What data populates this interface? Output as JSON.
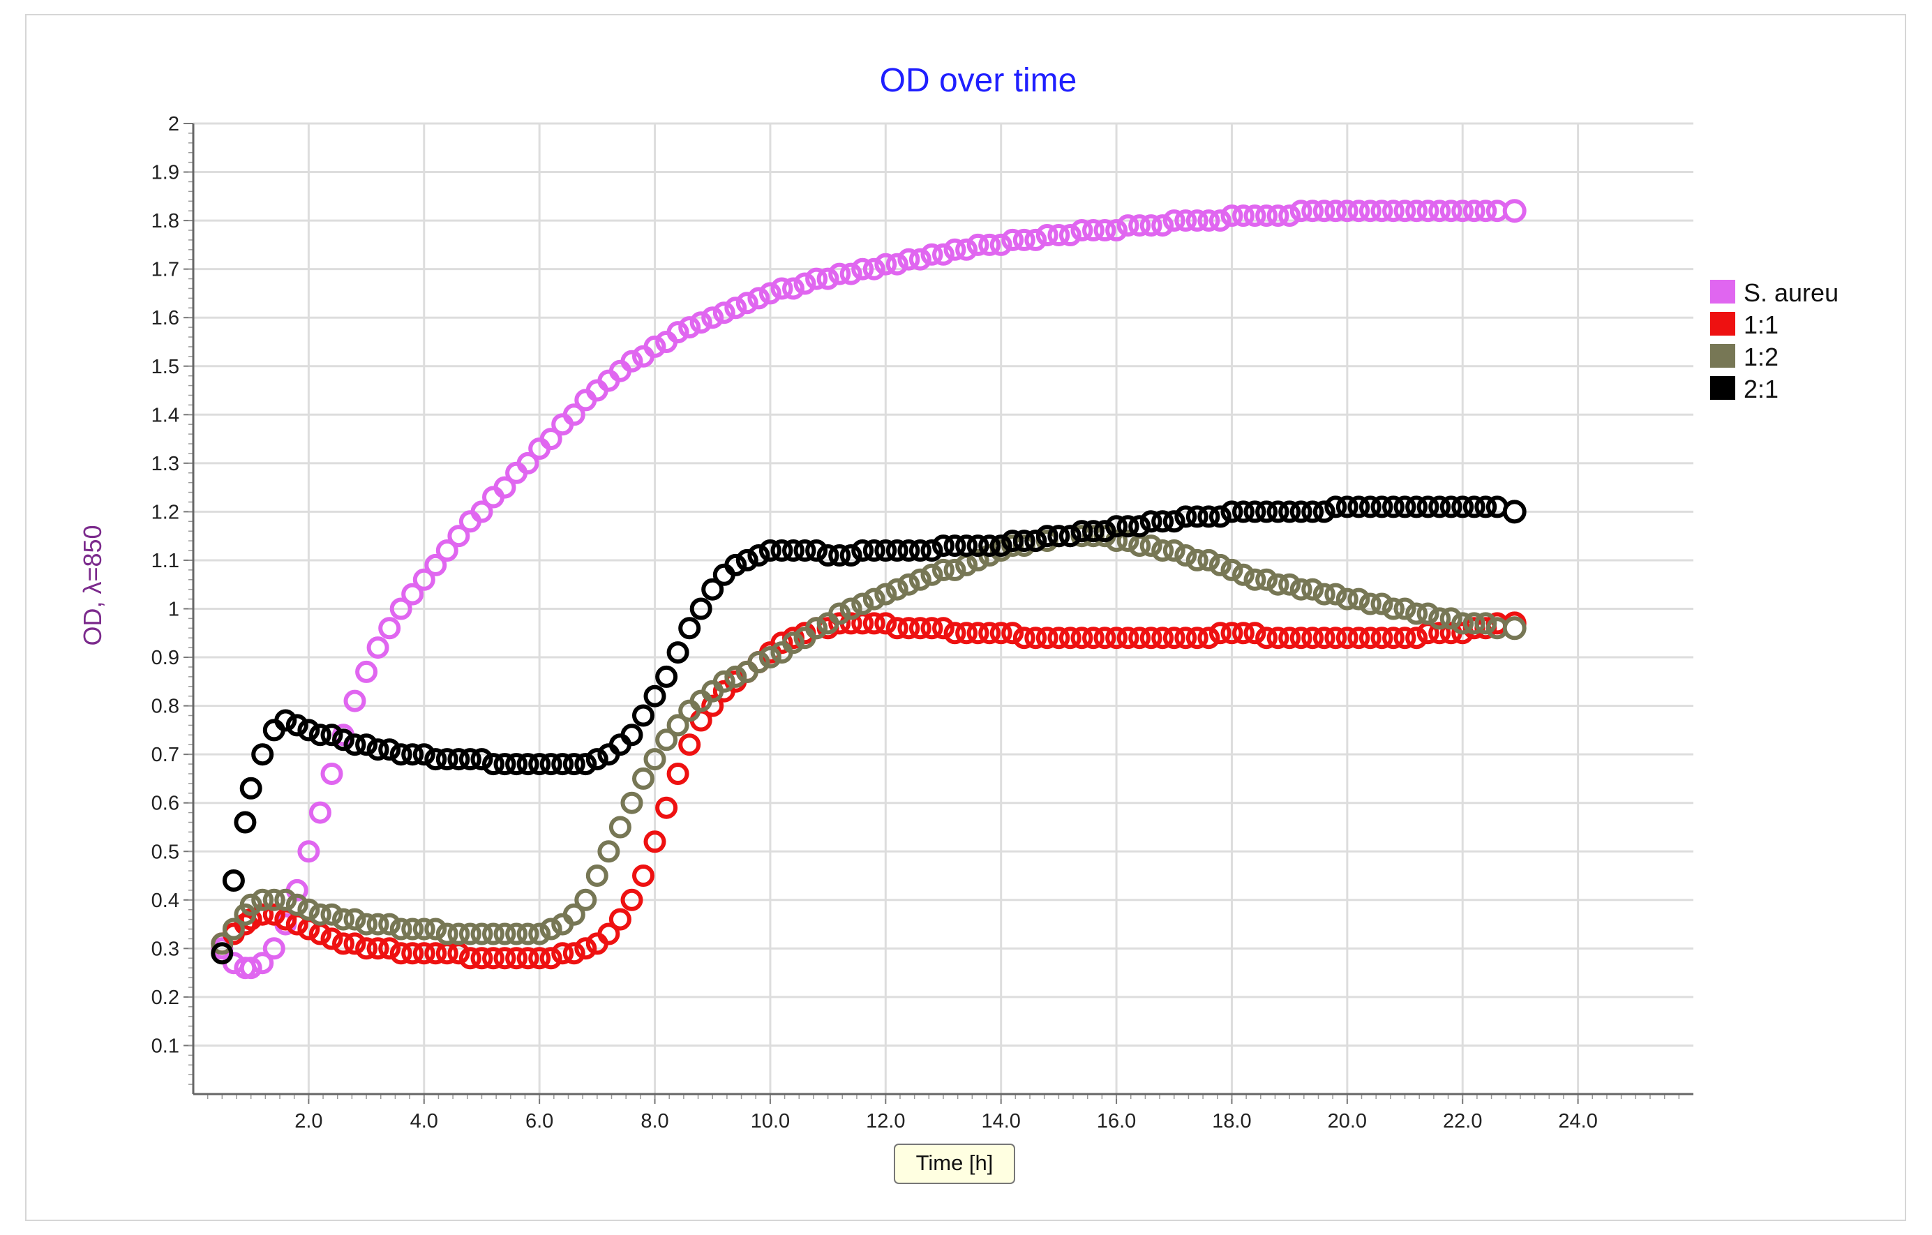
{
  "chart_data": {
    "type": "scatter",
    "title": "OD over time",
    "xlabel": "Time [h]",
    "ylabel": "OD, λ=850",
    "xlim": [
      0,
      26
    ],
    "ylim": [
      0,
      2
    ],
    "x_ticks": [
      "2.0",
      "4.0",
      "6.0",
      "8.0",
      "10.0",
      "12.0",
      "14.0",
      "16.0",
      "18.0",
      "20.0",
      "22.0",
      "24.0"
    ],
    "y_ticks": [
      "0.1",
      "0.2",
      "0.3",
      "0.4",
      "0.5",
      "0.6",
      "0.7",
      "0.8",
      "0.9",
      "1",
      "1.1",
      "1.2",
      "1.3",
      "1.4",
      "1.5",
      "1.6",
      "1.7",
      "1.8",
      "1.9",
      "2"
    ],
    "grid": true,
    "legend_position": "right",
    "marker": "hollow-circle",
    "x": [
      0.5,
      0.7,
      0.9,
      1.0,
      1.2,
      1.4,
      1.6,
      1.8,
      2.0,
      2.2,
      2.4,
      2.6,
      2.8,
      3.0,
      3.2,
      3.4,
      3.6,
      3.8,
      4.0,
      4.2,
      4.4,
      4.6,
      4.8,
      5.0,
      5.2,
      5.4,
      5.6,
      5.8,
      6.0,
      6.2,
      6.4,
      6.6,
      6.8,
      7.0,
      7.2,
      7.4,
      7.6,
      7.8,
      8.0,
      8.2,
      8.4,
      8.6,
      8.8,
      9.0,
      9.2,
      9.4,
      9.6,
      9.8,
      10.0,
      10.2,
      10.4,
      10.6,
      10.8,
      11.0,
      11.2,
      11.4,
      11.6,
      11.8,
      12.0,
      12.2,
      12.4,
      12.6,
      12.8,
      13.0,
      13.2,
      13.4,
      13.6,
      13.8,
      14.0,
      14.2,
      14.4,
      14.6,
      14.8,
      15.0,
      15.2,
      15.4,
      15.6,
      15.8,
      16.0,
      16.2,
      16.4,
      16.6,
      16.8,
      17.0,
      17.2,
      17.4,
      17.6,
      17.8,
      18.0,
      18.2,
      18.4,
      18.6,
      18.8,
      19.0,
      19.2,
      19.4,
      19.6,
      19.8,
      20.0,
      20.2,
      20.4,
      20.6,
      20.8,
      21.0,
      21.2,
      21.4,
      21.6,
      21.8,
      22.0,
      22.2,
      22.4,
      22.6,
      22.9
    ],
    "series": [
      {
        "name": "S. aureu",
        "color": "#e066f0",
        "values": [
          0.3,
          0.27,
          0.26,
          0.26,
          0.27,
          0.3,
          0.35,
          0.42,
          0.5,
          0.58,
          0.66,
          0.74,
          0.81,
          0.87,
          0.92,
          0.96,
          1.0,
          1.03,
          1.06,
          1.09,
          1.12,
          1.15,
          1.18,
          1.2,
          1.23,
          1.25,
          1.28,
          1.3,
          1.33,
          1.35,
          1.38,
          1.4,
          1.43,
          1.45,
          1.47,
          1.49,
          1.51,
          1.52,
          1.54,
          1.55,
          1.57,
          1.58,
          1.59,
          1.6,
          1.61,
          1.62,
          1.63,
          1.64,
          1.65,
          1.66,
          1.66,
          1.67,
          1.68,
          1.68,
          1.69,
          1.69,
          1.7,
          1.7,
          1.71,
          1.71,
          1.72,
          1.72,
          1.73,
          1.73,
          1.74,
          1.74,
          1.75,
          1.75,
          1.75,
          1.76,
          1.76,
          1.76,
          1.77,
          1.77,
          1.77,
          1.78,
          1.78,
          1.78,
          1.78,
          1.79,
          1.79,
          1.79,
          1.79,
          1.8,
          1.8,
          1.8,
          1.8,
          1.8,
          1.81,
          1.81,
          1.81,
          1.81,
          1.81,
          1.81,
          1.82,
          1.82,
          1.82,
          1.82,
          1.82,
          1.82,
          1.82,
          1.82,
          1.82,
          1.82,
          1.82,
          1.82,
          1.82,
          1.82,
          1.82,
          1.82,
          1.82,
          1.82,
          1.82
        ]
      },
      {
        "name": "1:1",
        "color": "#ee1111",
        "values": [
          0.31,
          0.33,
          0.35,
          0.36,
          0.37,
          0.37,
          0.36,
          0.35,
          0.34,
          0.33,
          0.32,
          0.31,
          0.31,
          0.3,
          0.3,
          0.3,
          0.29,
          0.29,
          0.29,
          0.29,
          0.29,
          0.29,
          0.28,
          0.28,
          0.28,
          0.28,
          0.28,
          0.28,
          0.28,
          0.28,
          0.29,
          0.29,
          0.3,
          0.31,
          0.33,
          0.36,
          0.4,
          0.45,
          0.52,
          0.59,
          0.66,
          0.72,
          0.77,
          0.8,
          0.83,
          0.85,
          0.87,
          0.89,
          0.91,
          0.93,
          0.94,
          0.95,
          0.96,
          0.96,
          0.97,
          0.97,
          0.97,
          0.97,
          0.97,
          0.96,
          0.96,
          0.96,
          0.96,
          0.96,
          0.95,
          0.95,
          0.95,
          0.95,
          0.95,
          0.95,
          0.94,
          0.94,
          0.94,
          0.94,
          0.94,
          0.94,
          0.94,
          0.94,
          0.94,
          0.94,
          0.94,
          0.94,
          0.94,
          0.94,
          0.94,
          0.94,
          0.94,
          0.95,
          0.95,
          0.95,
          0.95,
          0.94,
          0.94,
          0.94,
          0.94,
          0.94,
          0.94,
          0.94,
          0.94,
          0.94,
          0.94,
          0.94,
          0.94,
          0.94,
          0.94,
          0.95,
          0.95,
          0.95,
          0.95,
          0.96,
          0.96,
          0.97,
          0.97
        ]
      },
      {
        "name": "1:2",
        "color": "#777755",
        "values": [
          0.31,
          0.34,
          0.37,
          0.39,
          0.4,
          0.4,
          0.4,
          0.39,
          0.38,
          0.37,
          0.37,
          0.36,
          0.36,
          0.35,
          0.35,
          0.35,
          0.34,
          0.34,
          0.34,
          0.34,
          0.33,
          0.33,
          0.33,
          0.33,
          0.33,
          0.33,
          0.33,
          0.33,
          0.33,
          0.34,
          0.35,
          0.37,
          0.4,
          0.45,
          0.5,
          0.55,
          0.6,
          0.65,
          0.69,
          0.73,
          0.76,
          0.79,
          0.81,
          0.83,
          0.85,
          0.86,
          0.87,
          0.89,
          0.9,
          0.91,
          0.93,
          0.94,
          0.96,
          0.97,
          0.99,
          1.0,
          1.01,
          1.02,
          1.03,
          1.04,
          1.05,
          1.06,
          1.07,
          1.08,
          1.08,
          1.09,
          1.1,
          1.11,
          1.12,
          1.13,
          1.13,
          1.14,
          1.14,
          1.15,
          1.15,
          1.15,
          1.15,
          1.15,
          1.14,
          1.14,
          1.13,
          1.13,
          1.12,
          1.12,
          1.11,
          1.1,
          1.1,
          1.09,
          1.08,
          1.07,
          1.06,
          1.06,
          1.05,
          1.05,
          1.04,
          1.04,
          1.03,
          1.03,
          1.02,
          1.02,
          1.01,
          1.01,
          1.0,
          1.0,
          0.99,
          0.99,
          0.98,
          0.98,
          0.97,
          0.97,
          0.97,
          0.96,
          0.96
        ]
      },
      {
        "name": "2:1",
        "color": "#000000",
        "values": [
          0.29,
          0.44,
          0.56,
          0.63,
          0.7,
          0.75,
          0.77,
          0.76,
          0.75,
          0.74,
          0.74,
          0.73,
          0.72,
          0.72,
          0.71,
          0.71,
          0.7,
          0.7,
          0.7,
          0.69,
          0.69,
          0.69,
          0.69,
          0.69,
          0.68,
          0.68,
          0.68,
          0.68,
          0.68,
          0.68,
          0.68,
          0.68,
          0.68,
          0.69,
          0.7,
          0.72,
          0.74,
          0.78,
          0.82,
          0.86,
          0.91,
          0.96,
          1.0,
          1.04,
          1.07,
          1.09,
          1.1,
          1.11,
          1.12,
          1.12,
          1.12,
          1.12,
          1.12,
          1.11,
          1.11,
          1.11,
          1.12,
          1.12,
          1.12,
          1.12,
          1.12,
          1.12,
          1.12,
          1.13,
          1.13,
          1.13,
          1.13,
          1.13,
          1.13,
          1.14,
          1.14,
          1.14,
          1.15,
          1.15,
          1.15,
          1.16,
          1.16,
          1.16,
          1.17,
          1.17,
          1.17,
          1.18,
          1.18,
          1.18,
          1.19,
          1.19,
          1.19,
          1.19,
          1.2,
          1.2,
          1.2,
          1.2,
          1.2,
          1.2,
          1.2,
          1.2,
          1.2,
          1.21,
          1.21,
          1.21,
          1.21,
          1.21,
          1.21,
          1.21,
          1.21,
          1.21,
          1.21,
          1.21,
          1.21,
          1.21,
          1.21,
          1.21,
          1.2
        ]
      }
    ]
  }
}
